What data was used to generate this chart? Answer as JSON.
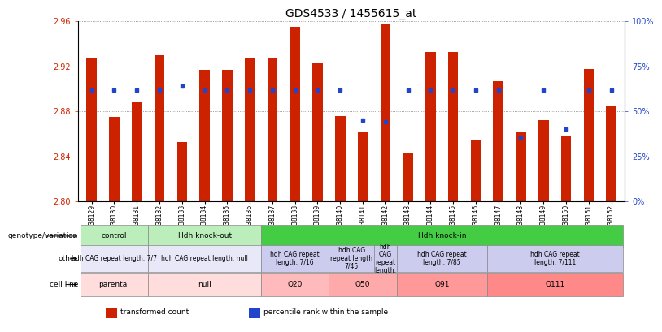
{
  "title": "GDS4533 / 1455615_at",
  "samples": [
    "GSM638129",
    "GSM638130",
    "GSM638131",
    "GSM638132",
    "GSM638133",
    "GSM638134",
    "GSM638135",
    "GSM638136",
    "GSM638137",
    "GSM638138",
    "GSM638139",
    "GSM638140",
    "GSM638141",
    "GSM638142",
    "GSM638143",
    "GSM638144",
    "GSM638145",
    "GSM638146",
    "GSM638147",
    "GSM638148",
    "GSM638149",
    "GSM638150",
    "GSM638151",
    "GSM638152"
  ],
  "transformed_count": [
    2.928,
    2.875,
    2.888,
    2.93,
    2.853,
    2.917,
    2.917,
    2.928,
    2.927,
    2.955,
    2.923,
    2.876,
    2.862,
    2.958,
    2.843,
    2.933,
    2.933,
    2.855,
    2.907,
    2.862,
    2.872,
    2.858,
    2.918,
    2.885
  ],
  "percentile_rank": [
    62,
    62,
    62,
    62,
    64,
    62,
    62,
    62,
    62,
    62,
    62,
    62,
    45,
    44,
    62,
    62,
    62,
    62,
    62,
    35,
    62,
    40,
    62,
    62
  ],
  "y_min": 2.8,
  "y_max": 2.96,
  "y_ticks": [
    2.8,
    2.84,
    2.88,
    2.92,
    2.96
  ],
  "y2_ticks": [
    0,
    25,
    50,
    75,
    100
  ],
  "bar_color": "#cc2200",
  "blue_color": "#2244cc",
  "title_fontsize": 10,
  "bar_width": 0.45,
  "geno_groups": [
    {
      "label": "control",
      "start": 0,
      "end": 3,
      "color": "#bbeebb"
    },
    {
      "label": "Hdh knock-out",
      "start": 3,
      "end": 8,
      "color": "#bbeebb"
    },
    {
      "label": "Hdh knock-in",
      "start": 8,
      "end": 24,
      "color": "#44cc44"
    }
  ],
  "other_groups": [
    {
      "label": "hdh CAG repeat length: 7/7",
      "start": 0,
      "end": 3,
      "color": "#e8e8f8"
    },
    {
      "label": "hdh CAG repeat length: null",
      "start": 3,
      "end": 8,
      "color": "#e8e8f8"
    },
    {
      "label": "hdh CAG repeat\nlength: 7/16",
      "start": 8,
      "end": 11,
      "color": "#ccccee"
    },
    {
      "label": "hdh CAG\nrepeat length\n7/45",
      "start": 11,
      "end": 13,
      "color": "#ccccee"
    },
    {
      "label": "hdh\nCAG\nrepeat\nlength:",
      "start": 13,
      "end": 14,
      "color": "#ccccee"
    },
    {
      "label": "hdh CAG repeat\nlength: 7/85",
      "start": 14,
      "end": 18,
      "color": "#ccccee"
    },
    {
      "label": "hdh CAG repeat\nlength: 7/111",
      "start": 18,
      "end": 24,
      "color": "#ccccee"
    }
  ],
  "cell_groups": [
    {
      "label": "parental",
      "start": 0,
      "end": 3,
      "color": "#ffdddd"
    },
    {
      "label": "null",
      "start": 3,
      "end": 8,
      "color": "#ffdddd"
    },
    {
      "label": "Q20",
      "start": 8,
      "end": 11,
      "color": "#ffbbbb"
    },
    {
      "label": "Q50",
      "start": 11,
      "end": 14,
      "color": "#ffaaaa"
    },
    {
      "label": "Q91",
      "start": 14,
      "end": 18,
      "color": "#ff9999"
    },
    {
      "label": "Q111",
      "start": 18,
      "end": 24,
      "color": "#ff8888"
    }
  ],
  "row_labels": [
    "genotype/variation",
    "other",
    "cell line"
  ],
  "legend_red": "transformed count",
  "legend_blue": "percentile rank within the sample",
  "bg_color": "#ffffff"
}
